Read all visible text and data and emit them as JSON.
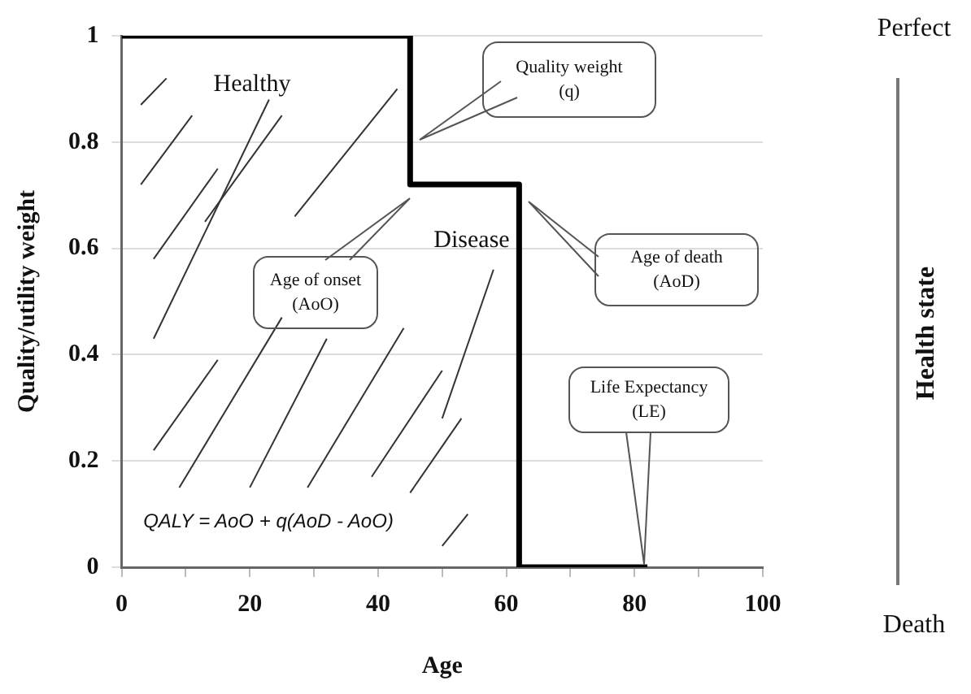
{
  "chart_data": {
    "type": "step",
    "xlabel": "Age",
    "ylabel": "Quality/utility weight",
    "x": [
      0,
      45,
      62,
      82
    ],
    "series": [
      {
        "color": "#000000",
        "values": [
          1,
          0.72,
          0,
          0
        ]
      }
    ],
    "xlim": [
      0,
      100
    ],
    "xticks": [
      0,
      {
        "value": 10,
        "label": null
      },
      20,
      {
        "value": 30,
        "label": null
      },
      40,
      {
        "value": 50,
        "label": null
      },
      60,
      {
        "value": 70,
        "label": null
      },
      80,
      {
        "value": 90,
        "label": null
      },
      100
    ],
    "ylim": [
      0,
      1
    ],
    "yticks": [
      0,
      0.2,
      0.4,
      0.6,
      0.8,
      1
    ],
    "grid": "y",
    "legend": false,
    "marker": "none",
    "line_style": "solid",
    "annotations": [
      "Quality weight (q)",
      "Age of onset (AoO)",
      "Age of death (AoD)",
      "Life Expectancy (LE)",
      "Healthy",
      "Disease",
      "QALY = AoO + q(AoD - AoO)",
      "Perfect",
      "Health state",
      "Death"
    ]
  }
}
